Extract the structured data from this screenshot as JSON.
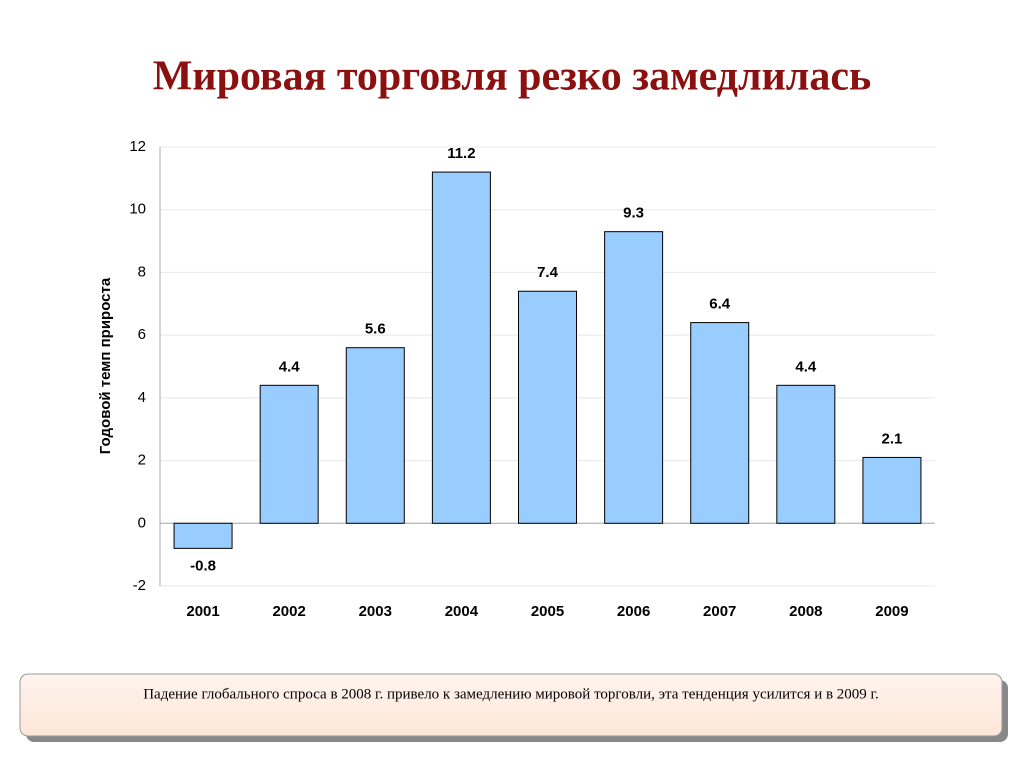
{
  "chart_data": {
    "type": "bar",
    "title": "Мировая торговля резко замедлилась",
    "y_label": "Годовой темп прироста",
    "categories": [
      "2001",
      "2002",
      "2003",
      "2004",
      "2005",
      "2006",
      "2007",
      "2008",
      "2009"
    ],
    "values": [
      -0.8,
      4.4,
      5.6,
      11.2,
      7.4,
      9.3,
      6.4,
      4.4,
      2.1
    ],
    "color": "#99ccff",
    "ylim": [
      -2,
      12
    ],
    "yticks": [
      -2,
      0,
      2,
      4,
      6,
      8,
      10,
      12
    ],
    "grid": true,
    "note": "Падение глобального спроса в 2008 г. привело к замедлению мировой торговли, эта тенденция усилится и в 2009 г."
  }
}
